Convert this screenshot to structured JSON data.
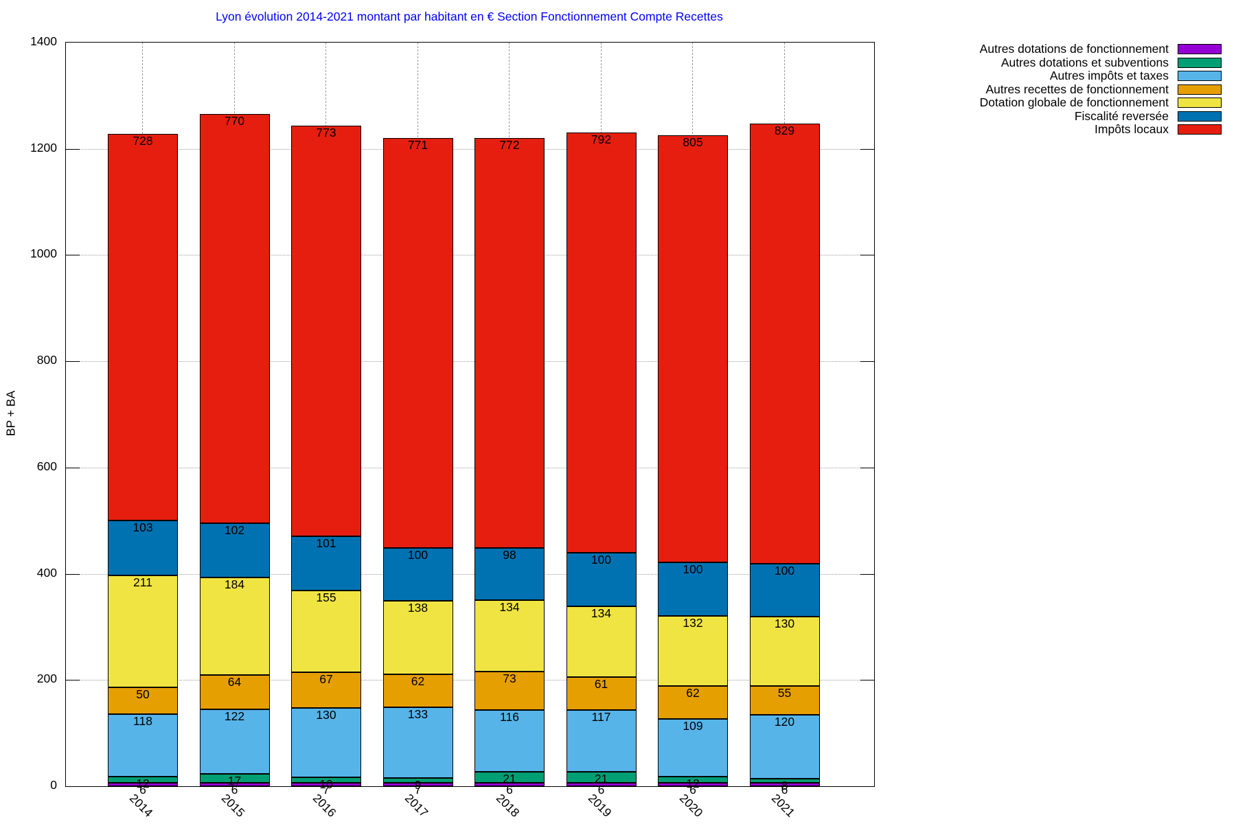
{
  "chart_data": {
    "type": "bar",
    "stacked": true,
    "title": "Lyon évolution 2014-2021 montant par habitant en € Section Fonctionnement Compte Recettes",
    "title_color": "#0000ff",
    "ylabel": "BP + BA",
    "xlabel": "",
    "ylim": [
      0,
      1400
    ],
    "yticks": [
      0,
      200,
      400,
      600,
      800,
      1000,
      1200,
      1400
    ],
    "grid": "dotted-gray",
    "legend_position": "outside-top-right",
    "bar_value_labels": true,
    "categories": [
      "2014",
      "2015",
      "2016",
      "2017",
      "2018",
      "2019",
      "2020",
      "2021"
    ],
    "series": [
      {
        "name": "Autres dotations de fonctionnement",
        "color": "#9400d3",
        "values": [
          6,
          6,
          7,
          7,
          6,
          6,
          6,
          6
        ]
      },
      {
        "name": "Autres dotations et subventions",
        "color": "#009e73",
        "values": [
          12,
          17,
          10,
          9,
          21,
          21,
          12,
          8
        ]
      },
      {
        "name": "Autres impôts et taxes",
        "color": "#56b4e9",
        "values": [
          118,
          122,
          130,
          133,
          116,
          117,
          109,
          120
        ]
      },
      {
        "name": "Autres recettes de fonctionnement",
        "color": "#e69f00",
        "values": [
          50,
          64,
          67,
          62,
          73,
          61,
          62,
          55
        ]
      },
      {
        "name": "Dotation globale de fonctionnement",
        "color": "#f0e442",
        "values": [
          211,
          184,
          155,
          138,
          134,
          134,
          132,
          130
        ]
      },
      {
        "name": "Fiscalité reversée",
        "color": "#0072b2",
        "values": [
          103,
          102,
          101,
          100,
          98,
          100,
          100,
          100
        ]
      },
      {
        "name": "Impôts locaux",
        "color": "#e51e10",
        "values": [
          728,
          770,
          773,
          771,
          772,
          792,
          805,
          829
        ]
      }
    ]
  }
}
